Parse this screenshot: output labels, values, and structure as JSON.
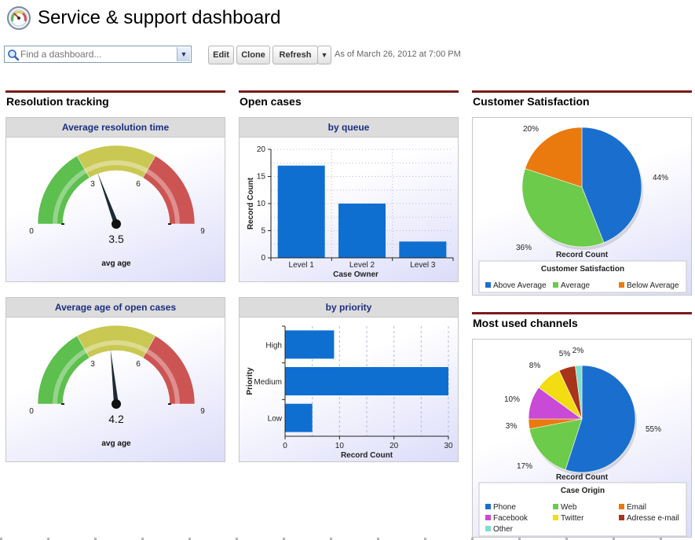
{
  "header": {
    "title": "Service & support dashboard",
    "logo_icon": "speedometer-icon"
  },
  "toolbar": {
    "search_placeholder": "Find a dashboard...",
    "edit_label": "Edit",
    "clone_label": "Clone",
    "refresh_label": "Refresh",
    "more_label": "▼",
    "as_of": "As of March 26, 2012 at 7:00 PM"
  },
  "columns": {
    "col1": "Resolution tracking",
    "col2": "Open cases",
    "col3a": "Customer Satisfaction",
    "col3b": "Most used channels"
  },
  "gauge1": {
    "title": "Average resolution time",
    "value_label": "3.5",
    "caption": "avg age",
    "ticks": [
      "0",
      "3",
      "6",
      "9"
    ],
    "chart_data": {
      "type": "gauge",
      "min": 0,
      "max": 9,
      "value": 3.5,
      "bands": [
        {
          "from": 0,
          "to": 3,
          "color": "#5cbf4e"
        },
        {
          "from": 3,
          "to": 6,
          "color": "#c9c853"
        },
        {
          "from": 6,
          "to": 9,
          "color": "#cc5553"
        }
      ]
    }
  },
  "gauge2": {
    "title": "Average age of open cases",
    "value_label": "4.2",
    "caption": "avg age",
    "ticks": [
      "0",
      "3",
      "6",
      "9"
    ],
    "chart_data": {
      "type": "gauge",
      "min": 0,
      "max": 9,
      "value": 4.2,
      "bands": [
        {
          "from": 0,
          "to": 3,
          "color": "#5cbf4e"
        },
        {
          "from": 3,
          "to": 6,
          "color": "#c9c853"
        },
        {
          "from": 6,
          "to": 9,
          "color": "#cc5553"
        }
      ]
    }
  },
  "queue_chart": {
    "title": "by queue",
    "chart_data": {
      "type": "bar",
      "categories": [
        "Level 1",
        "Level 2",
        "Level 3"
      ],
      "values": [
        17,
        10,
        3
      ],
      "xlabel": "Case Owner",
      "ylabel": "Record Count",
      "ylim": [
        0,
        20
      ],
      "yticks": [
        0,
        5,
        10,
        15,
        20
      ],
      "color": "#0e6fd1"
    }
  },
  "priority_chart": {
    "title": "by priority",
    "chart_data": {
      "type": "bar",
      "orientation": "horizontal",
      "categories": [
        "High",
        "Medium",
        "Low"
      ],
      "values": [
        9,
        30,
        5
      ],
      "xlabel": "Record Count",
      "ylabel": "Priority",
      "xlim": [
        0,
        30
      ],
      "xticks": [
        0,
        10,
        20,
        30
      ],
      "color": "#0e6fd1"
    }
  },
  "satisfaction_chart": {
    "chart_data": {
      "type": "pie",
      "xlabel": "Record Count",
      "legend_title": "Customer Satisfaction",
      "slices": [
        {
          "label": "Above Average",
          "value": 44,
          "pct_label": "44%",
          "color": "#1a6fce"
        },
        {
          "label": "Average",
          "value": 36,
          "pct_label": "36%",
          "color": "#6ccb4a"
        },
        {
          "label": "Below Average",
          "value": 20,
          "pct_label": "20%",
          "color": "#ea7a0d"
        }
      ]
    }
  },
  "channels_chart": {
    "chart_data": {
      "type": "pie",
      "xlabel": "Record Count",
      "legend_title": "Case Origin",
      "slices": [
        {
          "label": "Phone",
          "value": 55,
          "pct_label": "55%",
          "color": "#1a6fce"
        },
        {
          "label": "Web",
          "value": 17,
          "pct_label": "17%",
          "color": "#6ccb4a"
        },
        {
          "label": "Email",
          "value": 3,
          "pct_label": "3%",
          "color": "#ea7a0d"
        },
        {
          "label": "Facebook",
          "value": 10,
          "pct_label": "10%",
          "color": "#c84ad6"
        },
        {
          "label": "Twitter",
          "value": 8,
          "pct_label": "8%",
          "color": "#f2dc12"
        },
        {
          "label": "Adresse e-mail",
          "value": 5,
          "pct_label": "5%",
          "color": "#a8341a"
        },
        {
          "label": "Other",
          "value": 2,
          "pct_label": "2%",
          "color": "#7ee0c8"
        }
      ]
    }
  }
}
